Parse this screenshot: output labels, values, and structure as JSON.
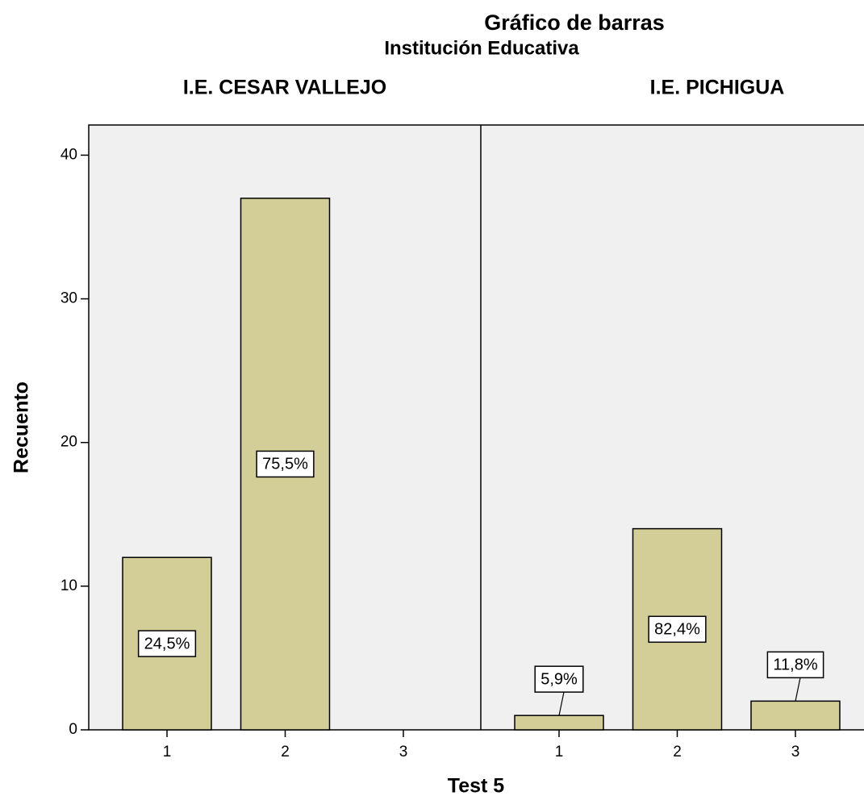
{
  "chart_data": {
    "type": "bar",
    "title": "Gráfico de barras",
    "subtitle": "Institución Educativa",
    "x_label": "Test 5",
    "y_label": "Recuento",
    "categories": [
      "1",
      "2",
      "3"
    ],
    "color": "#d3cd97",
    "ylim": [
      0,
      42.1
    ],
    "yticks": [
      0,
      10,
      20,
      30,
      40
    ],
    "panels": [
      {
        "name": "I.E. CESAR VALLEJO",
        "values": [
          12,
          37,
          0
        ],
        "percent_labels": [
          "24,5%",
          "75,5%",
          null
        ]
      },
      {
        "name": "I.E. PICHIGUA",
        "values": [
          1,
          14,
          2
        ],
        "percent_labels": [
          "5,9%",
          "82,4%",
          "11,8%"
        ]
      }
    ]
  }
}
